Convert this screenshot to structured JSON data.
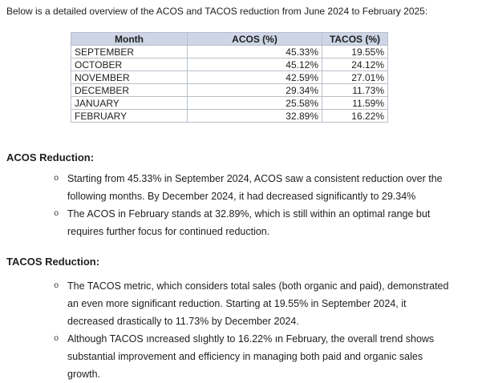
{
  "intro": "Below is a detailed overview of the ACOS and TACOS reduction from June 2024 to February 2025:",
  "bullet_char": "o",
  "colors": {
    "table_header_bg": "#cdd5e6",
    "table_border": "#b9bfca",
    "text": "#1e1e1e"
  },
  "table": {
    "columns": [
      "Month",
      "ACOS (%)",
      "TACOS (%)"
    ],
    "rows": [
      {
        "month": "SEPTEMBER",
        "acos": "45.33%",
        "tacos": "19.55%"
      },
      {
        "month": "OCTOBER",
        "acos": "45.12%",
        "tacos": "24.12%"
      },
      {
        "month": "NOVEMBER",
        "acos": "42.59%",
        "tacos": "27.01%"
      },
      {
        "month": "DECEMBER",
        "acos": "29.34%",
        "tacos": "11.73%"
      },
      {
        "month": "JANUARY",
        "acos": "25.58%",
        "tacos": "11.59%"
      },
      {
        "month": "FEBRUARY",
        "acos": "32.89%",
        "tacos": "16.22%"
      }
    ]
  },
  "sections": [
    {
      "heading": "ACOS Reduction:",
      "bullets": [
        "Starting from 45.33% in September 2024, ACOS saw a consistent reduction over the following months. By December 2024, it had decreased significantly to 29.34%",
        "The ACOS in February stands at 32.89%, which is still within an optimal range but requires further focus for continued reduction."
      ]
    },
    {
      "heading": "TACOS Reduction:",
      "bullets": [
        "The TACOS metric, which considers total sales (both organic and paid), demonstrated an even more significant reduction. Starting at 19.55% in September 2024, it decreased drastically to 11.73% by December 2024.",
        "Although TACOS ıncreased slıghtly to 16.22% ın February, the overall trend shows substantial improvement and efficiency in managing both paid and organic sales growth."
      ]
    }
  ]
}
